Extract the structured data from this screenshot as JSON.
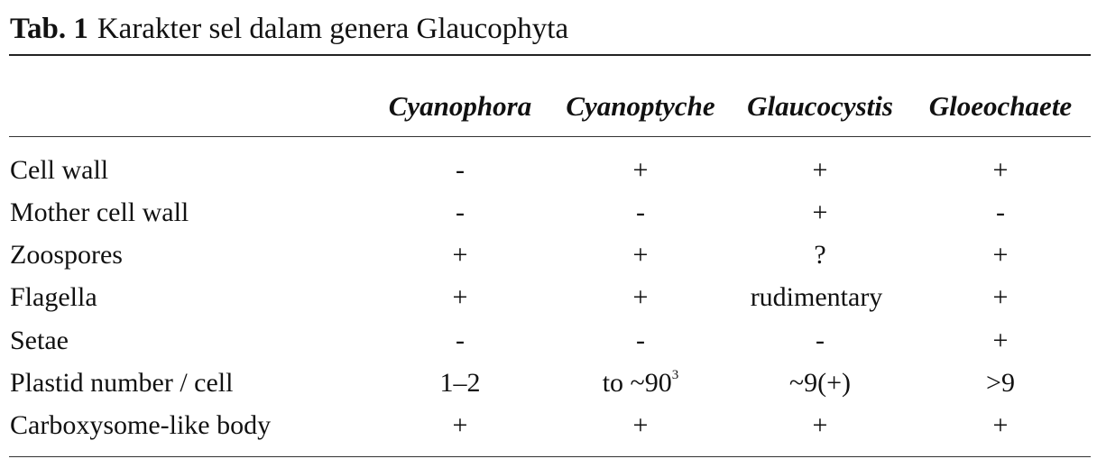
{
  "caption": {
    "label": "Tab. 1",
    "text": "Karakter sel dalam genera Glaucophyta"
  },
  "table": {
    "columns": [
      "Cyanophora",
      "Cyanoptyche",
      "Glaucocystis",
      "Gloeochaete"
    ],
    "rows": [
      {
        "label": "Cell wall",
        "values": [
          "-",
          "+",
          "+",
          "+"
        ]
      },
      {
        "label": "Mother cell wall",
        "values": [
          "-",
          "-",
          "+",
          "-"
        ]
      },
      {
        "label": "Zoospores",
        "values": [
          "+",
          "+",
          "?",
          "+"
        ]
      },
      {
        "label": "Flagella",
        "values": [
          "+",
          "+",
          "rudimentary",
          "+"
        ]
      },
      {
        "label": "Setae",
        "values": [
          "-",
          "-",
          "-",
          "+"
        ]
      },
      {
        "label": "Plastid number / cell",
        "values": [
          "1–2",
          "to ~90",
          "~9(+)",
          ">9"
        ],
        "superscripts": [
          "",
          "3",
          "",
          ""
        ]
      },
      {
        "label": "Carboxysome-like body",
        "values": [
          "+",
          "+",
          "+",
          "+"
        ]
      }
    ]
  }
}
